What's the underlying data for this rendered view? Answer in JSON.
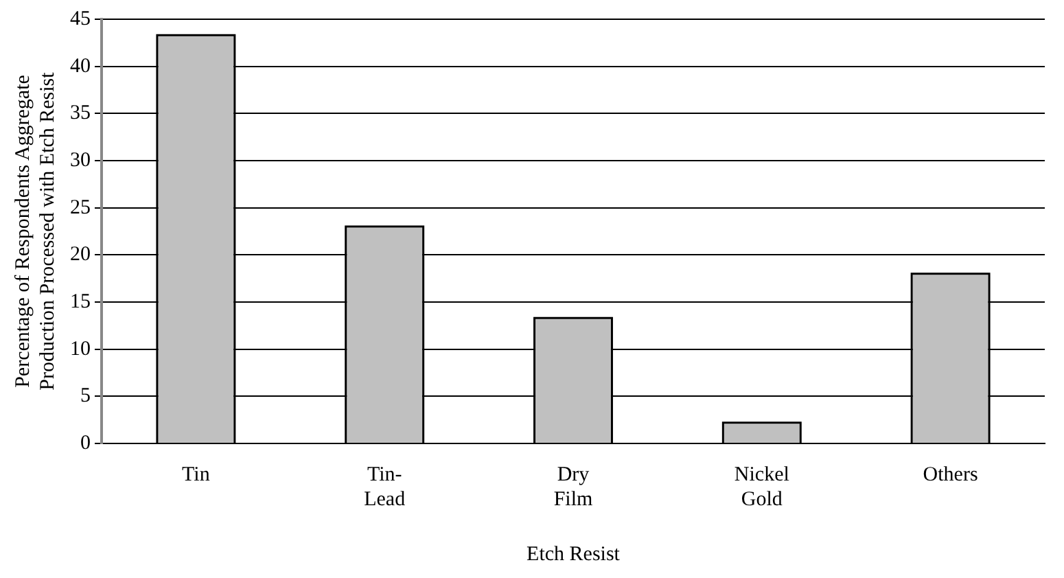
{
  "chart_data": {
    "type": "bar",
    "xlabel": "Etch Resist",
    "ylabel": "Percentage of Respondents Aggregate Production Processed with Etch Resist",
    "categories": [
      "Tin",
      "Tin-Lead",
      "Dry Film",
      "Nickel Gold",
      "Others"
    ],
    "values": [
      43.2,
      22.9,
      13.2,
      2.1,
      17.9
    ],
    "color": "#c0c0c0",
    "ylim": [
      0,
      45
    ],
    "yticks": [
      0,
      5,
      10,
      15,
      20,
      25,
      30,
      35,
      40,
      45
    ],
    "grid": "y",
    "legend": false
  }
}
